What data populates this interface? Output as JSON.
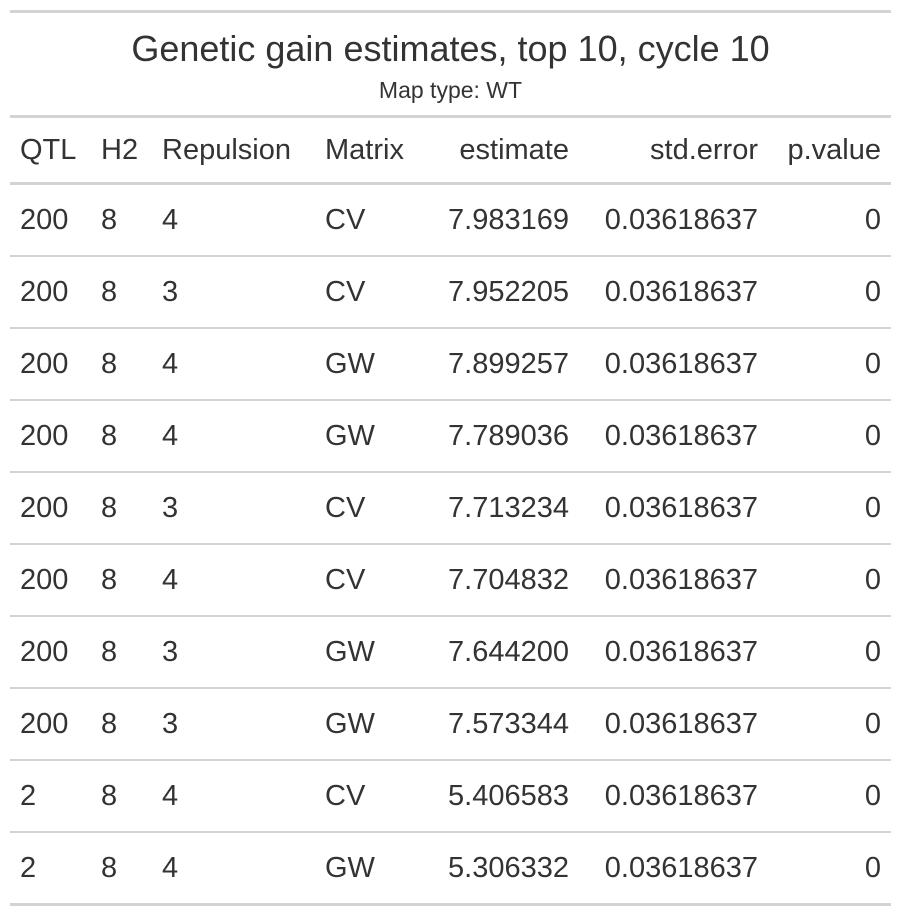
{
  "title": "Genetic gain estimates, top 10, cycle 10",
  "subtitle": "Map type: WT",
  "columns": [
    "QTL",
    "H2",
    "Repulsion",
    "Matrix",
    "estimate",
    "std.error",
    "p.value"
  ],
  "rows": [
    [
      "200",
      "8",
      "4",
      "CV",
      "7.983169",
      "0.03618637",
      "0"
    ],
    [
      "200",
      "8",
      "3",
      "CV",
      "7.952205",
      "0.03618637",
      "0"
    ],
    [
      "200",
      "8",
      "4",
      "GW",
      "7.899257",
      "0.03618637",
      "0"
    ],
    [
      "200",
      "8",
      "4",
      "GW",
      "7.789036",
      "0.03618637",
      "0"
    ],
    [
      "200",
      "8",
      "3",
      "CV",
      "7.713234",
      "0.03618637",
      "0"
    ],
    [
      "200",
      "8",
      "4",
      "CV",
      "7.704832",
      "0.03618637",
      "0"
    ],
    [
      "200",
      "8",
      "3",
      "GW",
      "7.644200",
      "0.03618637",
      "0"
    ],
    [
      "200",
      "8",
      "3",
      "GW",
      "7.573344",
      "0.03618637",
      "0"
    ],
    [
      "2",
      "8",
      "4",
      "CV",
      "5.406583",
      "0.03618637",
      "0"
    ],
    [
      "2",
      "8",
      "4",
      "GW",
      "5.306332",
      "0.03618637",
      "0"
    ]
  ],
  "colors": {
    "text": "#333333",
    "rule": "#d3d3d3",
    "background": "#ffffff"
  }
}
